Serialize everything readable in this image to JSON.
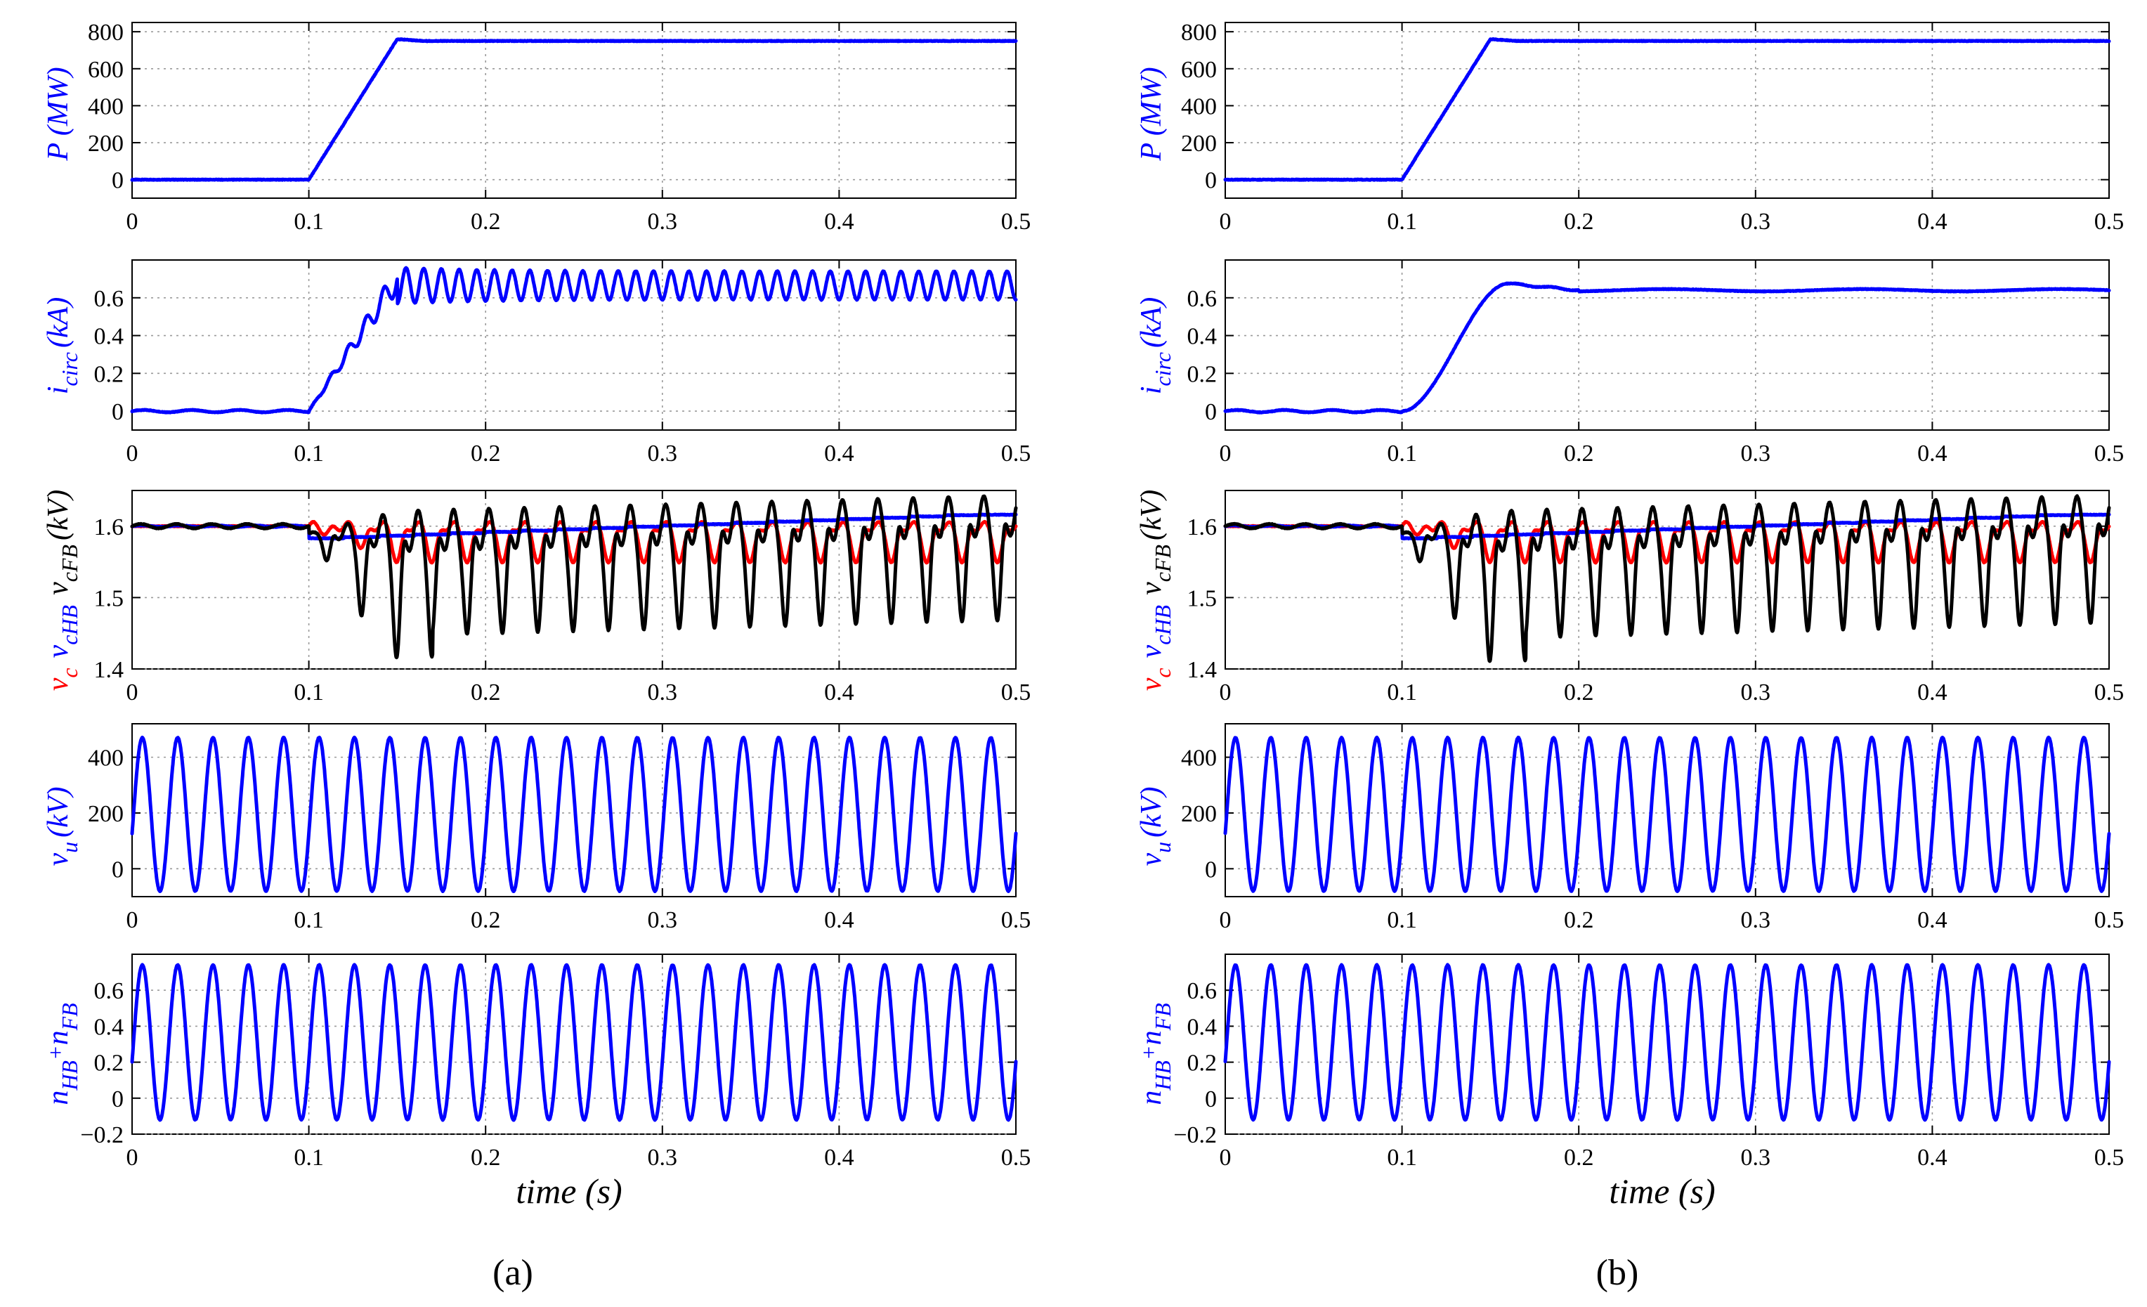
{
  "figure": {
    "panel_a_label": "(a)",
    "panel_b_label": "(b)",
    "xlabel": "time (s)",
    "x_ticks": [
      "0",
      "0.1",
      "0.2",
      "0.3",
      "0.4",
      "0.5"
    ]
  },
  "colors": {
    "blue": "#0000ff",
    "red": "#ff0000",
    "black": "#000000"
  },
  "ylabels": {
    "power": {
      "main": "P (MW)"
    },
    "circ": {
      "main": "i",
      "sub": "circ",
      "rest": "(kA)"
    },
    "cap": {
      "vc": "v",
      "vc_sub": "c",
      "vhb": "v",
      "vhb_sub": "cHB",
      "vfb": "v",
      "vfb_sub": "cFB",
      "unit": "(kV)"
    },
    "vu": {
      "main": "v",
      "sub": "u",
      "rest": "(kV)"
    },
    "n": {
      "n1": "n",
      "n1_sub": "HB",
      "plus": "+",
      "n2": "n",
      "n2_sub": "FB"
    }
  },
  "chart_data": [
    {
      "id": "a-power",
      "column": "a",
      "type": "line",
      "ylabel": "P (MW)",
      "xlim": [
        0,
        0.5
      ],
      "ylim": [
        -100,
        850
      ],
      "y_ticks": [
        "0",
        "200",
        "400",
        "600",
        "800"
      ],
      "series": [
        {
          "name": "P",
          "color": "#0000ff",
          "description": "0 MW until t=0.1 s, linear ramp to ~760 MW at t=0.15 s, then steady at ~750 MW"
        }
      ]
    },
    {
      "id": "a-circ",
      "column": "a",
      "type": "line",
      "ylabel": "i_circ (kA)",
      "xlim": [
        0,
        0.5
      ],
      "ylim": [
        -0.1,
        0.8
      ],
      "y_ticks": [
        "0",
        "0.2",
        "0.4",
        "0.6"
      ],
      "series": [
        {
          "name": "i_circ",
          "color": "#0000ff",
          "description": "0 kA until 0.1 s, stepped rise to ~0.7 kA at 0.15 s, then oscillates between ~0.57 and ~0.76 kA at 100 Hz"
        }
      ]
    },
    {
      "id": "a-cap",
      "column": "a",
      "type": "line",
      "ylabel": "v_c  v_cHB  v_cFB (kV)",
      "xlim": [
        0,
        0.5
      ],
      "ylim": [
        1.4,
        1.65
      ],
      "y_ticks": [
        "1.4",
        "1.5",
        "1.6"
      ],
      "series": [
        {
          "name": "v_c",
          "color": "#ff0000",
          "description": "~1.6 kV, dips to ~1.55 kV during ripples after 0.1 s"
        },
        {
          "name": "v_cHB",
          "color": "#0000ff",
          "description": "~1.6 kV, slight rise to ~1.62 kV by 0.5 s"
        },
        {
          "name": "v_cFB",
          "color": "#000000",
          "description": "~1.6 kV until 0.1 s, then 50 Hz ripple with deep dips to ~1.42 kV"
        }
      ]
    },
    {
      "id": "a-vu",
      "column": "a",
      "type": "line",
      "ylabel": "v_u (kV)",
      "xlim": [
        0,
        0.5
      ],
      "ylim": [
        -100,
        520
      ],
      "y_ticks": [
        "0",
        "200",
        "400"
      ],
      "series": [
        {
          "name": "v_u",
          "color": "#0000ff",
          "description": "50 Hz sinusoid between about -80 and 470 kV"
        }
      ]
    },
    {
      "id": "a-n",
      "column": "a",
      "type": "line",
      "ylabel": "n_HB+n_FB",
      "xlim": [
        0,
        0.5
      ],
      "ylim": [
        -0.2,
        0.8
      ],
      "y_ticks": [
        "−0.2",
        "0",
        "0.2",
        "0.4",
        "0.6"
      ],
      "series": [
        {
          "name": "n_HB+n_FB",
          "color": "#0000ff",
          "description": "50 Hz sinusoid between about -0.12 and 0.74"
        }
      ]
    },
    {
      "id": "b-power",
      "column": "b",
      "type": "line",
      "ylabel": "P (MW)",
      "xlim": [
        0,
        0.5
      ],
      "ylim": [
        -100,
        850
      ],
      "y_ticks": [
        "0",
        "200",
        "400",
        "600",
        "800"
      ],
      "series": [
        {
          "name": "P",
          "color": "#0000ff",
          "description": "0 MW until t=0.1 s, linear ramp to ~760 MW at t=0.15 s, then steady at ~750 MW"
        }
      ]
    },
    {
      "id": "b-circ",
      "column": "b",
      "type": "line",
      "ylabel": "i_circ (kA)",
      "xlim": [
        0,
        0.5
      ],
      "ylim": [
        -0.1,
        0.8
      ],
      "y_ticks": [
        "0",
        "0.2",
        "0.4",
        "0.6"
      ],
      "series": [
        {
          "name": "i_circ",
          "color": "#0000ff",
          "description": "0 kA until 0.1 s, smooth rise to ~0.67 kA at 0.16 s, settles at ~0.64 kA"
        }
      ]
    },
    {
      "id": "b-cap",
      "column": "b",
      "type": "line",
      "ylabel": "v_c  v_cHB  v_cFB (kV)",
      "xlim": [
        0,
        0.5
      ],
      "ylim": [
        1.4,
        1.65
      ],
      "y_ticks": [
        "1.4",
        "1.5",
        "1.6"
      ],
      "series": [
        {
          "name": "v_c",
          "color": "#ff0000",
          "description": "~1.6 kV, dips to ~1.55 kV during ripples after 0.1 s"
        },
        {
          "name": "v_cHB",
          "color": "#0000ff",
          "description": "~1.6 kV, slight rise to ~1.62 kV by 0.5 s"
        },
        {
          "name": "v_cFB",
          "color": "#000000",
          "description": "~1.6 kV until 0.1 s, then 50 Hz ripple with dips to ~1.41 kV"
        }
      ]
    },
    {
      "id": "b-vu",
      "column": "b",
      "type": "line",
      "ylabel": "v_u (kV)",
      "xlim": [
        0,
        0.5
      ],
      "ylim": [
        -100,
        520
      ],
      "y_ticks": [
        "0",
        "200",
        "400"
      ],
      "series": [
        {
          "name": "v_u",
          "color": "#0000ff",
          "description": "50 Hz sinusoid between about -80 and 470 kV"
        }
      ]
    },
    {
      "id": "b-n",
      "column": "b",
      "type": "line",
      "ylabel": "n_HB+n_FB",
      "xlim": [
        0,
        0.5
      ],
      "ylim": [
        -0.2,
        0.8
      ],
      "y_ticks": [
        "−0.2",
        "0",
        "0.2",
        "0.4",
        "0.6"
      ],
      "series": [
        {
          "name": "n_HB+n_FB",
          "color": "#0000ff",
          "description": "50 Hz sinusoid between about -0.12 and 0.74"
        }
      ]
    }
  ]
}
